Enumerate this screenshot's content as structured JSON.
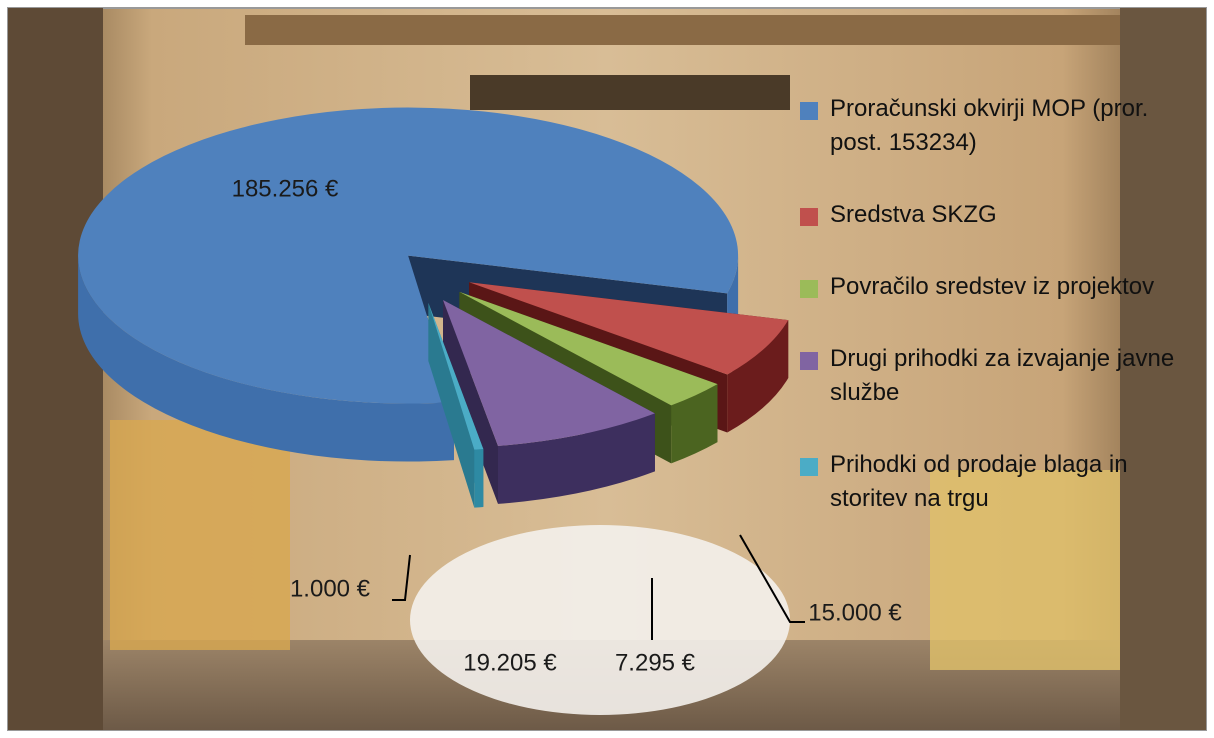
{
  "chart_data": {
    "type": "pie",
    "categories": [
      "Proračunski okvirji MOP (pror. post. 153234)",
      "Sredstva SKZG",
      "Povračilo sredstev iz projektov",
      "Drugi prihodki za izvajanje javne službe",
      "Prihodki od prodaje blaga in storitev na trgu"
    ],
    "values": [
      185256,
      15000,
      7295,
      19205,
      1000
    ],
    "value_labels": [
      "185.256 €",
      "15.000 €",
      "7.295 €",
      "19.205 €",
      "1.000 €"
    ],
    "colors": [
      "#4f81bd",
      "#c0504d",
      "#9bbb59",
      "#8064a2",
      "#4bacc6"
    ],
    "legend": "right"
  }
}
